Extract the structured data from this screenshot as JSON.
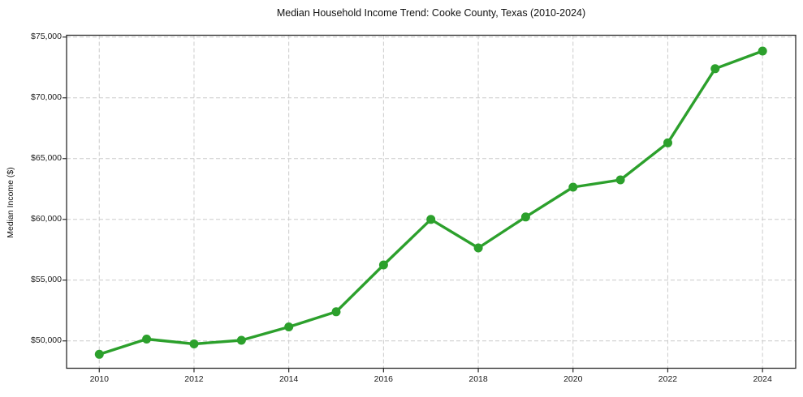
{
  "chart_data": {
    "type": "line",
    "title": "Median Household Income Trend: Cooke County, Texas (2010-2024)",
    "xlabel": "",
    "ylabel": "Median Income ($)",
    "series_name": "Median Household Income",
    "x": [
      2010,
      2011,
      2012,
      2013,
      2014,
      2015,
      2016,
      2017,
      2018,
      2019,
      2020,
      2021,
      2022,
      2023,
      2024
    ],
    "values": [
      48900,
      50150,
      49750,
      50050,
      51150,
      52400,
      56250,
      60000,
      57650,
      60200,
      62650,
      63250,
      66300,
      72400,
      73850
    ],
    "xlim": [
      2009.31,
      2024.7
    ],
    "ylim": [
      47750,
      75150
    ],
    "xticks": [
      {
        "v": 2010,
        "label": "2010"
      },
      {
        "v": 2012,
        "label": "2012"
      },
      {
        "v": 2014,
        "label": "2014"
      },
      {
        "v": 2016,
        "label": "2016"
      },
      {
        "v": 2018,
        "label": "2018"
      },
      {
        "v": 2020,
        "label": "2020"
      },
      {
        "v": 2022,
        "label": "2022"
      },
      {
        "v": 2024,
        "label": "2024"
      }
    ],
    "yticks": [
      {
        "v": 50000,
        "label": "$50,000"
      },
      {
        "v": 55000,
        "label": "$55,000"
      },
      {
        "v": 60000,
        "label": "$60,000"
      },
      {
        "v": 65000,
        "label": "$65,000"
      },
      {
        "v": 70000,
        "label": "$70,000"
      },
      {
        "v": 75000,
        "label": "$75,000"
      }
    ],
    "grid": true,
    "legend_position": "none",
    "line_color": "#2ca02c",
    "marker_color": "#2ca02c",
    "grid_color": "#cccccc",
    "spine_color": "#2b2b2b",
    "background_color": "#ffffff"
  }
}
